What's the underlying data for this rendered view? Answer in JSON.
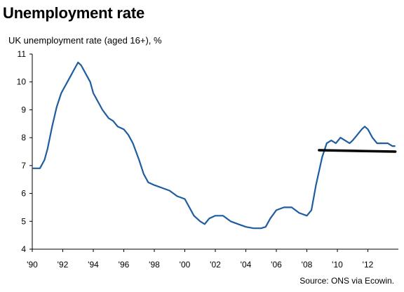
{
  "title": "Unemployment rate",
  "subtitle": "UK unemployment rate (aged 16+), %",
  "source": "Source: ONS via Ecowin.",
  "colors": {
    "series": "#1f5da0",
    "trend_line": "#000000",
    "axis": "#000000"
  },
  "chart_data": {
    "type": "line",
    "title": "Unemployment rate",
    "ylabel": "UK unemployment rate (aged 16+), %",
    "xlabel": "",
    "xlim": [
      1990,
      2014
    ],
    "ylim": [
      4,
      11
    ],
    "grid": false,
    "x_ticks": [
      1990,
      1992,
      1994,
      1996,
      1998,
      2000,
      2002,
      2004,
      2006,
      2008,
      2010,
      2012
    ],
    "x_tick_labels": [
      "'90",
      "'92",
      "'94",
      "'96",
      "'98",
      "'00",
      "'02",
      "'04",
      "'06",
      "'08",
      "'10",
      "'12"
    ],
    "y_ticks": [
      4,
      5,
      6,
      7,
      8,
      9,
      10,
      11
    ],
    "y_tick_labels": [
      "4",
      "5",
      "6",
      "7",
      "8",
      "9",
      "10",
      "11"
    ],
    "series": [
      {
        "x": [
          1990.0,
          1990.5,
          1990.8,
          1991.0,
          1991.3,
          1991.6,
          1991.9,
          1992.2,
          1992.5,
          1992.8,
          1993.0,
          1993.2,
          1993.5,
          1993.8,
          1994.0,
          1994.3,
          1994.6,
          1995.0,
          1995.3,
          1995.6,
          1996.0,
          1996.3,
          1996.6,
          1997.0,
          1997.3,
          1997.6,
          1998.0,
          1998.5,
          1999.0,
          1999.5,
          2000.0,
          2000.3,
          2000.6,
          2001.0,
          2001.3,
          2001.6,
          2002.0,
          2002.5,
          2003.0,
          2003.5,
          2004.0,
          2004.5,
          2005.0,
          2005.3,
          2005.6,
          2006.0,
          2006.5,
          2007.0,
          2007.5,
          2008.0,
          2008.3,
          2008.6,
          2009.0,
          2009.3,
          2009.6,
          2009.9,
          2010.2,
          2010.5,
          2010.8,
          2011.0,
          2011.3,
          2011.6,
          2011.8,
          2012.0,
          2012.3,
          2012.6,
          2013.0,
          2013.3,
          2013.6,
          2013.8
        ],
        "values": [
          6.9,
          6.9,
          7.2,
          7.6,
          8.4,
          9.1,
          9.6,
          9.9,
          10.2,
          10.5,
          10.7,
          10.6,
          10.3,
          10.0,
          9.6,
          9.3,
          9.0,
          8.7,
          8.6,
          8.4,
          8.3,
          8.1,
          7.8,
          7.2,
          6.7,
          6.4,
          6.3,
          6.2,
          6.1,
          5.9,
          5.8,
          5.5,
          5.2,
          5.0,
          4.9,
          5.1,
          5.2,
          5.2,
          5.0,
          4.9,
          4.8,
          4.75,
          4.75,
          4.8,
          5.1,
          5.4,
          5.5,
          5.5,
          5.3,
          5.2,
          5.4,
          6.3,
          7.3,
          7.8,
          7.9,
          7.8,
          8.0,
          7.9,
          7.8,
          7.9,
          8.1,
          8.3,
          8.4,
          8.3,
          8.0,
          7.8,
          7.8,
          7.8,
          7.7,
          7.7
        ]
      }
    ],
    "annotations": [
      {
        "type": "line",
        "x": [
          2008.8,
          2013.8
        ],
        "y": [
          7.55,
          7.5
        ]
      }
    ]
  }
}
